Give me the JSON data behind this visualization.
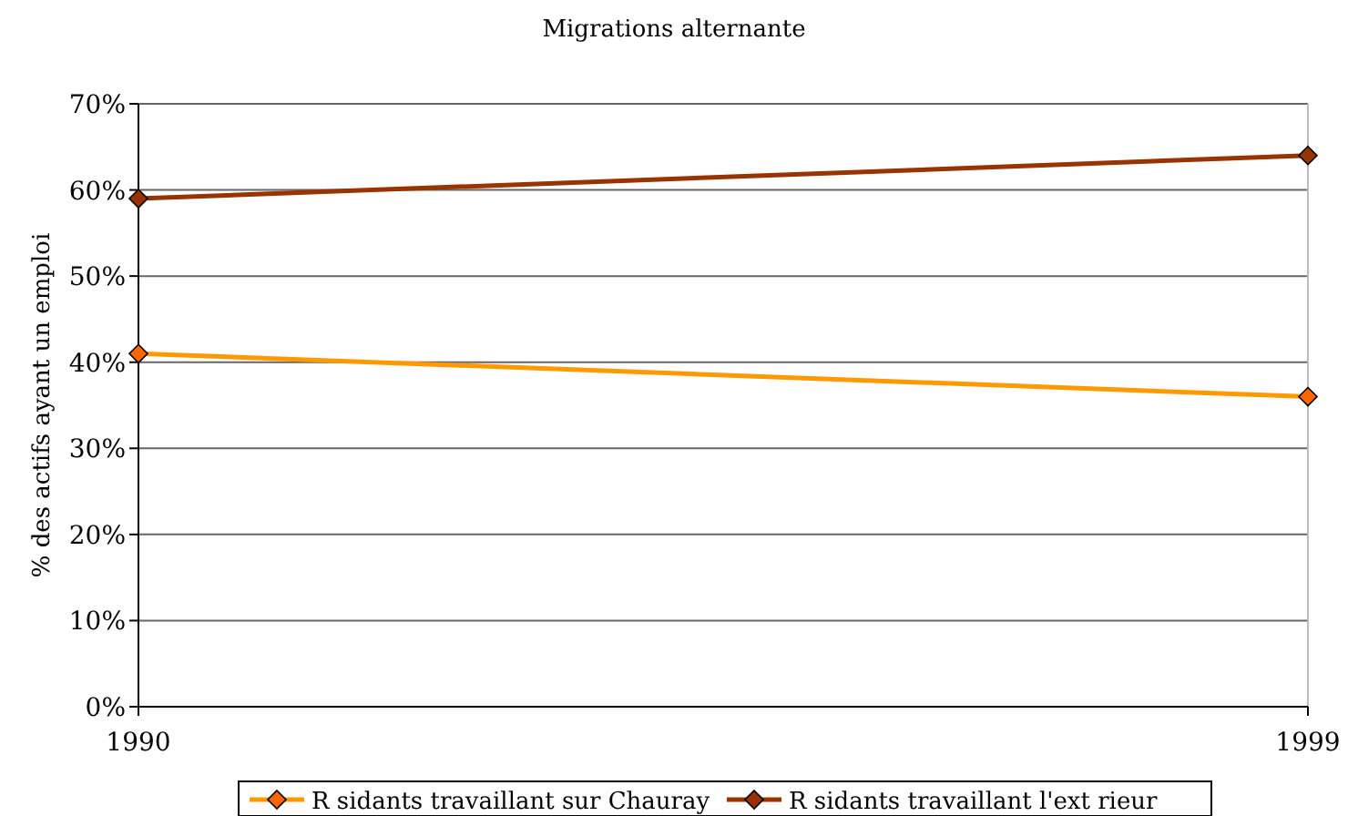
{
  "chart_data": {
    "type": "line",
    "title": "Migrations alternante",
    "ylabel": "% des actifs ayant un emploi",
    "x": [
      1990,
      1999
    ],
    "xlim": [
      1990,
      1999
    ],
    "xticks": [
      1990,
      1999
    ],
    "ylim": [
      0,
      70
    ],
    "yticks": [
      {
        "value": 0,
        "label": "0%"
      },
      {
        "value": 10,
        "label": "10%"
      },
      {
        "value": 20,
        "label": "20%"
      },
      {
        "value": 30,
        "label": "30%"
      },
      {
        "value": 40,
        "label": "40%"
      },
      {
        "value": 50,
        "label": "50%"
      },
      {
        "value": 60,
        "label": "60%"
      },
      {
        "value": 70,
        "label": "70%"
      }
    ],
    "series": [
      {
        "name": "R sidants travaillant sur Chauray",
        "color": "#ff9900",
        "values": [
          41,
          36
        ]
      },
      {
        "name": "R sidants travaillant    l'ext rieur",
        "color": "#993300",
        "values": [
          59,
          64
        ]
      }
    ],
    "grid": "y",
    "legend": "bottom",
    "marker": "diamond",
    "line_style": "solid"
  }
}
